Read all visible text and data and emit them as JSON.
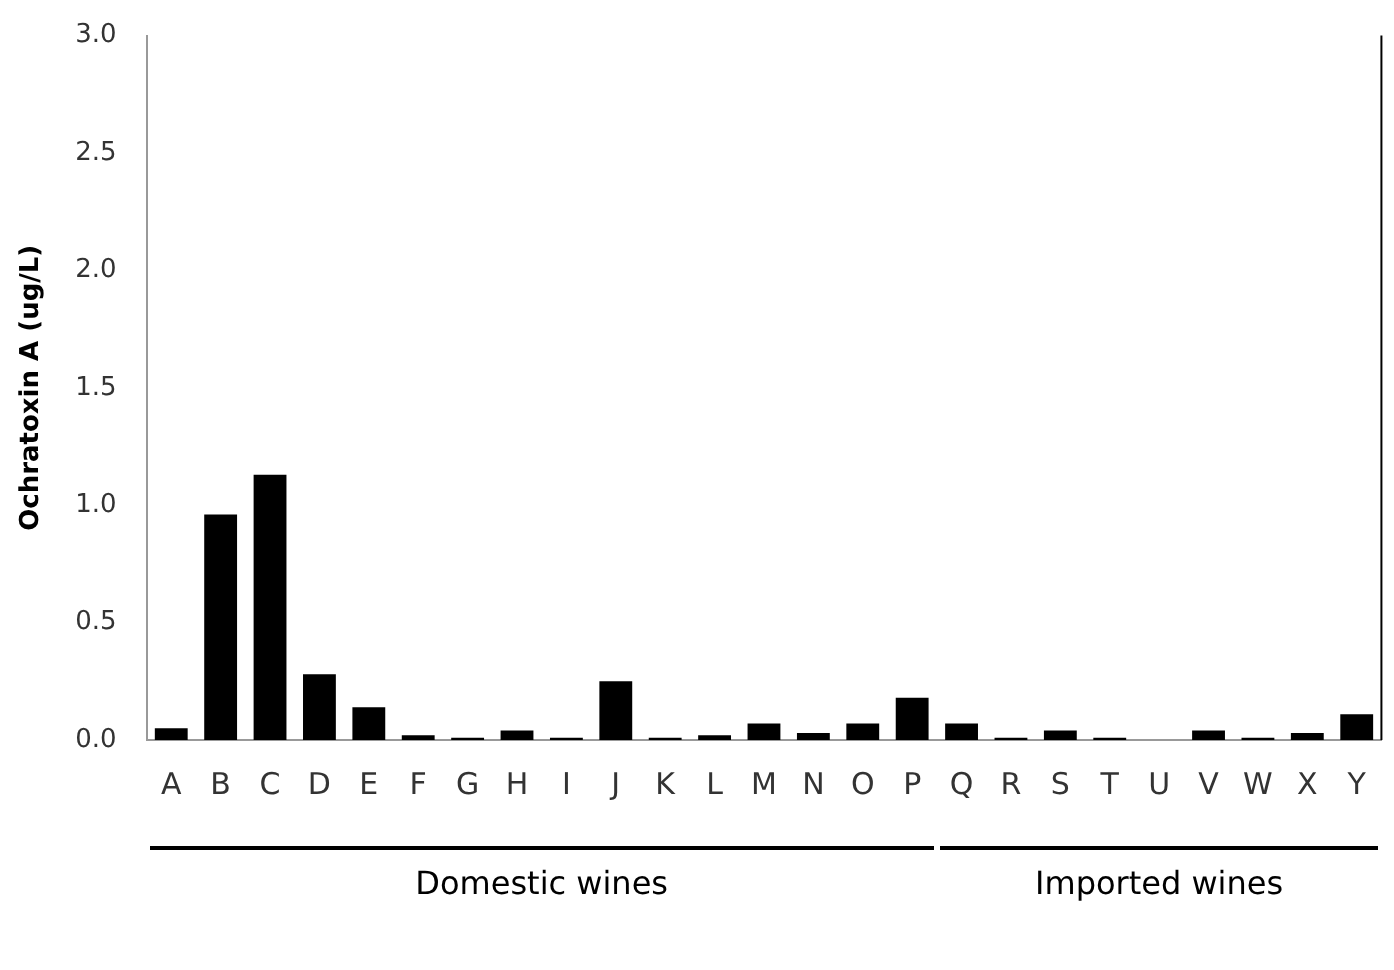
{
  "chart_data": {
    "type": "bar",
    "ylabel": "Ochratoxin A (ug/L)",
    "categories": [
      "A",
      "B",
      "C",
      "D",
      "E",
      "F",
      "G",
      "H",
      "I",
      "J",
      "K",
      "L",
      "M",
      "N",
      "O",
      "P",
      "Q",
      "R",
      "S",
      "T",
      "U",
      "V",
      "W",
      "X",
      "Y"
    ],
    "values": [
      0.05,
      0.96,
      1.13,
      0.28,
      0.14,
      0.02,
      0.01,
      0.04,
      0.01,
      0.25,
      0.01,
      0.02,
      0.07,
      0.03,
      0.07,
      0.18,
      0.07,
      0.01,
      0.04,
      0.01,
      0,
      0.04,
      0.01,
      0.03,
      0.11
    ],
    "color": "#000000",
    "ylim": [
      0,
      3
    ],
    "yticks": [
      {
        "value": 0,
        "label": "0.0"
      },
      {
        "value": 0.5,
        "label": "0.5"
      },
      {
        "value": 1,
        "label": "1.0"
      },
      {
        "value": 1.5,
        "label": "1.5"
      },
      {
        "value": 2,
        "label": "2.0"
      },
      {
        "value": 2.5,
        "label": "2.5"
      },
      {
        "value": 3,
        "label": "3.0"
      }
    ],
    "grid": false,
    "legend": false,
    "annotations": [
      "Domestic wines",
      "Imported wines"
    ]
  }
}
